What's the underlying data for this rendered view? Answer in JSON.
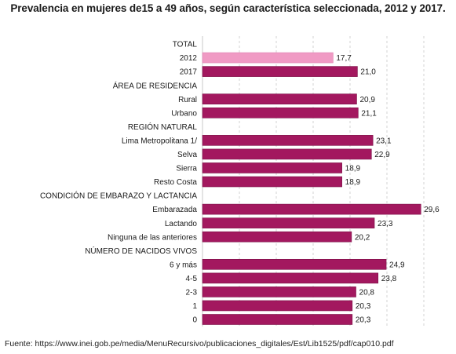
{
  "title": "Prevalencia en mujeres de15 a 49 años, según característica seleccionada, 2012 y 2017.",
  "source": "Fuente: https://www.inei.gob.pe/media/MenuRecursivo/publicaciones_digitales/Est/Lib1525/pdf/cap010.pdf",
  "colors": {
    "bar": "#a3185f",
    "bar_highlight": "#f09ac4",
    "bar_border": "#7a0f45",
    "grid": "#c9c9c9"
  },
  "chart_data": {
    "type": "bar",
    "orientation": "horizontal",
    "title": "Prevalencia en mujeres de15 a 49 años, según característica seleccionada, 2012 y 2017.",
    "xlim": [
      0,
      30
    ],
    "grid": true,
    "rows": [
      {
        "label": "TOTAL",
        "header": true
      },
      {
        "label": "2012",
        "value": 17.7,
        "value_label": "17,7",
        "highlight": true
      },
      {
        "label": "2017",
        "value": 21.0,
        "value_label": "21,0"
      },
      {
        "label": "ÁREA DE RESIDENCIA",
        "header": true
      },
      {
        "label": "Rural",
        "value": 20.9,
        "value_label": "20,9"
      },
      {
        "label": "Urbano",
        "value": 21.1,
        "value_label": "21,1"
      },
      {
        "label": "REGIÓN NATURAL",
        "header": true
      },
      {
        "label": "Lima Metropolitana 1/",
        "value": 23.1,
        "value_label": "23,1"
      },
      {
        "label": "Selva",
        "value": 22.9,
        "value_label": "22,9"
      },
      {
        "label": "Sierra",
        "value": 18.9,
        "value_label": "18,9"
      },
      {
        "label": "Resto Costa",
        "value": 18.9,
        "value_label": "18,9"
      },
      {
        "label": "CONDICIÓN DE EMBARAZO Y LACTANCIA",
        "header": true
      },
      {
        "label": "Embarazada",
        "value": 29.6,
        "value_label": "29,6"
      },
      {
        "label": "Lactando",
        "value": 23.3,
        "value_label": "23,3"
      },
      {
        "label": "Ninguna de las anteriores",
        "value": 20.2,
        "value_label": "20,2"
      },
      {
        "label": "NÚMERO DE NACIDOS VIVOS",
        "header": true
      },
      {
        "label": "6 y más",
        "value": 24.9,
        "value_label": "24,9"
      },
      {
        "label": "4-5",
        "value": 23.8,
        "value_label": "23,8"
      },
      {
        "label": "2-3",
        "value": 20.8,
        "value_label": "20,8"
      },
      {
        "label": "1",
        "value": 20.3,
        "value_label": "20,3"
      },
      {
        "label": "0",
        "value": 20.3,
        "value_label": "20,3"
      }
    ]
  }
}
